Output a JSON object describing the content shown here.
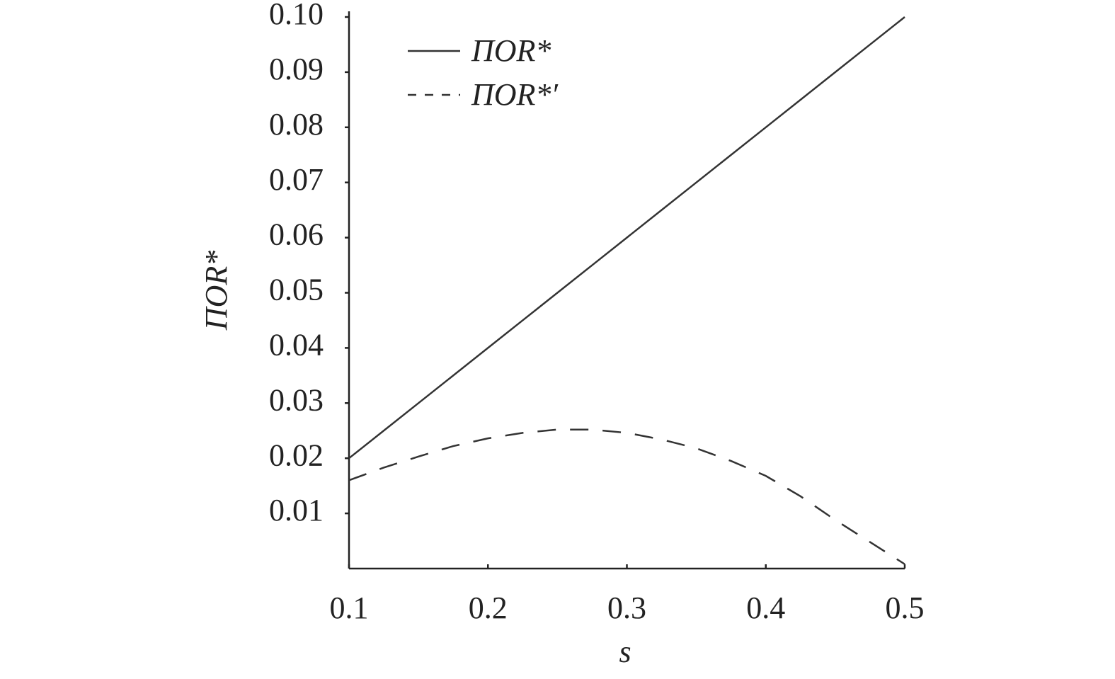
{
  "chart_data": {
    "type": "line",
    "x_label": "s",
    "y_label": "ΠOR*",
    "x": [
      0.1,
      0.125,
      0.15,
      0.175,
      0.2,
      0.225,
      0.25,
      0.275,
      0.3,
      0.325,
      0.35,
      0.375,
      0.4,
      0.425,
      0.45,
      0.475,
      0.5
    ],
    "series": [
      {
        "name": "ΠOR*",
        "color": "#333333",
        "dash": false,
        "values": [
          0.02,
          0.025,
          0.03,
          0.035,
          0.04,
          0.045,
          0.05,
          0.055,
          0.06,
          0.065,
          0.07,
          0.075,
          0.08,
          0.085,
          0.09,
          0.095,
          0.1
        ]
      },
      {
        "name": "ΠOR*′",
        "color": "#333333",
        "dash": true,
        "values": [
          0.016,
          0.0183,
          0.0203,
          0.0222,
          0.0236,
          0.0246,
          0.0252,
          0.0252,
          0.0246,
          0.0234,
          0.0218,
          0.0195,
          0.0168,
          0.0131,
          0.0088,
          0.0048,
          0.0008
        ]
      }
    ],
    "xlim": [
      0.1,
      0.5
    ],
    "xticks": [
      0.1,
      0.2,
      0.3,
      0.4,
      0.5
    ],
    "ylim": [
      0,
      0.1
    ],
    "yticks": [
      0.01,
      0.02,
      0.03,
      0.04,
      0.05,
      0.06,
      0.07,
      0.08,
      0.09,
      {
        "value": 0.1,
        "label": "0.10"
      }
    ],
    "legend": "upper-left"
  }
}
